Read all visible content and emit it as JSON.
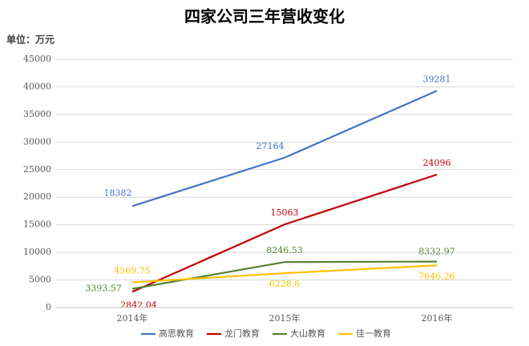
{
  "chart_data": {
    "type": "line",
    "title": "四家公司三年营收变化",
    "y_label": "单位：万元",
    "categories": [
      "2014年",
      "2015年",
      "2016年"
    ],
    "series": [
      {
        "name": "高思教育",
        "color": "#4472c4",
        "values": [
          18382,
          27164,
          39281
        ]
      },
      {
        "name": "龙门教育",
        "color": "#c00000",
        "values": [
          2842.04,
          15063,
          24096
        ]
      },
      {
        "name": "大山教育",
        "color": "#548235",
        "values": [
          3393.57,
          8246.53,
          8332.97
        ]
      },
      {
        "name": "佳一教育",
        "color": "#ffc000",
        "values": [
          4569.75,
          6228.6,
          7646.26
        ]
      }
    ],
    "ylim": [
      0,
      45000
    ],
    "yticks": [
      0,
      5000,
      10000,
      15000,
      20000,
      25000,
      30000,
      35000,
      40000,
      45000
    ],
    "grid": true,
    "legend": "bottom"
  }
}
